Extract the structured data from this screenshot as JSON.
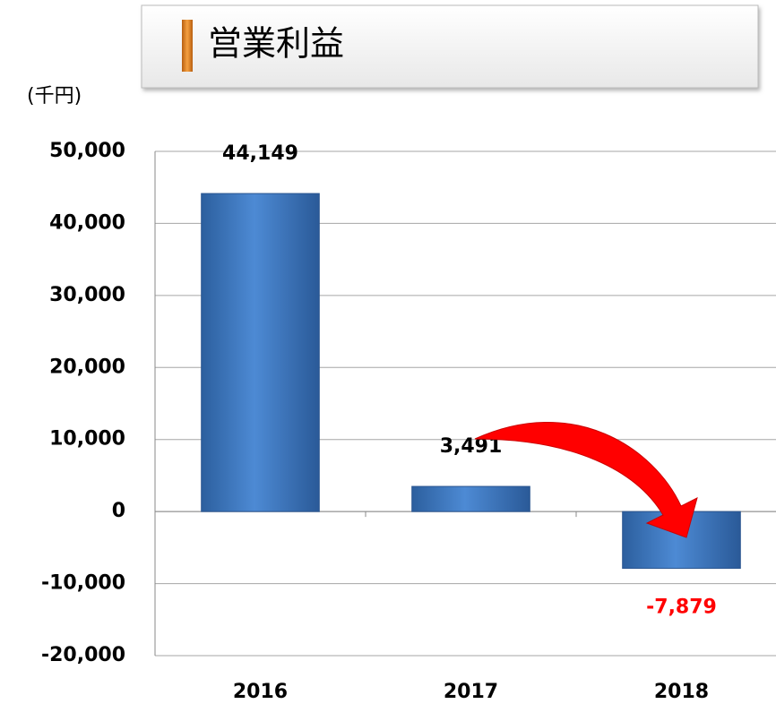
{
  "chart_data": {
    "type": "bar",
    "title": "営業利益",
    "unit_label": "(千円)",
    "categories": [
      "2016",
      "2017",
      "2018"
    ],
    "values": [
      44149,
      3491,
      -7879
    ],
    "value_labels": [
      "44,149",
      "3,491",
      "-7,879"
    ],
    "value_label_colors": [
      "#000000",
      "#000000",
      "#ff0000"
    ],
    "color": "#3d7ac4",
    "ylim": [
      -20000,
      50000
    ],
    "yticks": [
      {
        "value": -20000,
        "label": "-20,000"
      },
      {
        "value": -10000,
        "label": "-10,000"
      },
      0,
      {
        "value": 10000,
        "label": "10,000"
      },
      {
        "value": 20000,
        "label": "20,000"
      },
      {
        "value": 30000,
        "label": "30,000"
      },
      {
        "value": 40000,
        "label": "40,000"
      },
      {
        "value": 50000,
        "label": "50,000"
      }
    ],
    "grid": true
  }
}
